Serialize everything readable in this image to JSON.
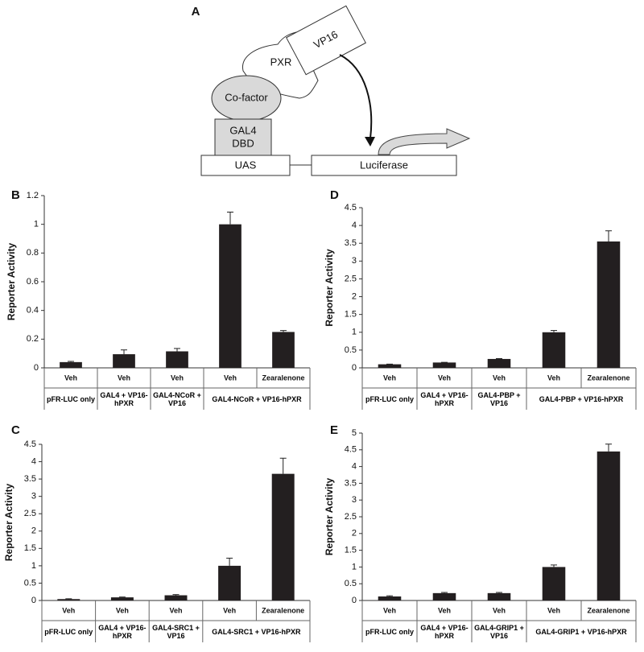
{
  "diagram": {
    "panel": "A",
    "vp16": "VP16",
    "pxr": "PXR",
    "cofactor": "Co-factor",
    "dbd": [
      "GAL4",
      "DBD"
    ],
    "uas": "UAS",
    "luciferase": "Luciferase"
  },
  "chart_data": [
    {
      "type": "bar",
      "panel": "B",
      "ylabel": "Reporter Activity",
      "color": "#231f20",
      "ylim": [
        0,
        1.2
      ],
      "yticks": [
        0,
        0.2,
        0.4,
        0.6,
        0.8,
        1,
        1.2
      ],
      "groups": [
        {
          "name": "pFR-LUC only",
          "categories": [
            "Veh"
          ],
          "values": [
            0.04
          ],
          "errors": [
            0.005
          ]
        },
        {
          "name": "GAL4 + VP16-hPXR",
          "categories": [
            "Veh"
          ],
          "values": [
            0.095
          ],
          "errors": [
            0.03
          ]
        },
        {
          "name": "GAL4-NCoR + VP16",
          "categories": [
            "Veh"
          ],
          "values": [
            0.115
          ],
          "errors": [
            0.02
          ]
        },
        {
          "name": "GAL4-NCoR + VP16-hPXR",
          "categories": [
            "Veh",
            "Zearalenone"
          ],
          "values": [
            1.0,
            0.25
          ],
          "errors": [
            0.085,
            0.01
          ]
        }
      ]
    },
    {
      "type": "bar",
      "panel": "C",
      "ylabel": "Reporter Activity",
      "color": "#231f20",
      "ylim": [
        0,
        4.5
      ],
      "yticks": [
        0,
        0.5,
        1,
        1.5,
        2,
        2.5,
        3,
        3.5,
        4,
        4.5
      ],
      "groups": [
        {
          "name": "pFR-LUC only",
          "categories": [
            "Veh"
          ],
          "values": [
            0.04
          ],
          "errors": [
            0.01
          ]
        },
        {
          "name": "GAL4 + VP16-hPXR",
          "categories": [
            "Veh"
          ],
          "values": [
            0.09
          ],
          "errors": [
            0.01
          ]
        },
        {
          "name": "GAL4-SRC1 + VP16",
          "categories": [
            "Veh"
          ],
          "values": [
            0.15
          ],
          "errors": [
            0.02
          ]
        },
        {
          "name": "GAL4-SRC1 + VP16-hPXR",
          "categories": [
            "Veh",
            "Zearalenone"
          ],
          "values": [
            1.0,
            3.65
          ],
          "errors": [
            0.22,
            0.45
          ]
        }
      ]
    },
    {
      "type": "bar",
      "panel": "D",
      "ylabel": "Reporter Activity",
      "color": "#231f20",
      "ylim": [
        0,
        4.5
      ],
      "yticks": [
        0,
        0.5,
        1,
        1.5,
        2,
        2.5,
        3,
        3.5,
        4,
        4.5
      ],
      "groups": [
        {
          "name": "pFR-LUC only",
          "categories": [
            "Veh"
          ],
          "values": [
            0.1
          ],
          "errors": [
            0.005
          ]
        },
        {
          "name": "GAL4 + VP16-hPXR",
          "categories": [
            "Veh"
          ],
          "values": [
            0.15
          ],
          "errors": [
            0.005
          ]
        },
        {
          "name": "GAL4-PBP + VP16",
          "categories": [
            "Veh"
          ],
          "values": [
            0.25
          ],
          "errors": [
            0.01
          ]
        },
        {
          "name": "GAL4-PBP + VP16-hPXR",
          "categories": [
            "Veh",
            "Zearalenone"
          ],
          "values": [
            1.0,
            3.55
          ],
          "errors": [
            0.05,
            0.3
          ]
        }
      ]
    },
    {
      "type": "bar",
      "panel": "E",
      "ylabel": "Reporter Activity",
      "color": "#231f20",
      "ylim": [
        0,
        5
      ],
      "yticks": [
        0,
        0.5,
        1,
        1.5,
        2,
        2.5,
        3,
        3.5,
        4,
        4.5,
        5
      ],
      "groups": [
        {
          "name": "pFR-LUC only",
          "categories": [
            "Veh"
          ],
          "values": [
            0.12
          ],
          "errors": [
            0.02
          ]
        },
        {
          "name": "GAL4 + VP16-hPXR",
          "categories": [
            "Veh"
          ],
          "values": [
            0.22
          ],
          "errors": [
            0.02
          ]
        },
        {
          "name": "GAL4-GRIP1 + VP16",
          "categories": [
            "Veh"
          ],
          "values": [
            0.22
          ],
          "errors": [
            0.02
          ]
        },
        {
          "name": "GAL4-GRIP1 + VP16-hPXR",
          "categories": [
            "Veh",
            "Zearalenone"
          ],
          "values": [
            1.0,
            4.45
          ],
          "errors": [
            0.06,
            0.22
          ]
        }
      ]
    }
  ]
}
